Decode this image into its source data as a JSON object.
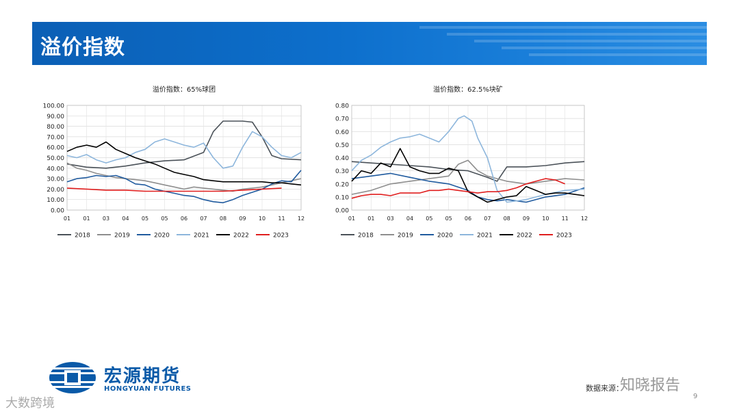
{
  "header": {
    "title": "溢价指数"
  },
  "footer": {
    "company_cn": "宏源期货",
    "company_en": "HONGYUAN FUTURES",
    "source_text": "数据来源：",
    "page_number": "9",
    "watermark_right": "知晓报告",
    "watermark_left": "大数跨境"
  },
  "colors": {
    "2018": "#4a5158",
    "2019": "#8e8e8e",
    "2020": "#1f5a9e",
    "2021": "#8db6dc",
    "2022": "#000000",
    "2023": "#e01e1e"
  },
  "chart_data": [
    {
      "type": "line",
      "title": "溢价指数：65%球团",
      "x_ticks": [
        "01",
        "01",
        "03",
        "04",
        "05",
        "05",
        "06",
        "07",
        "08",
        "09",
        "10",
        "11",
        "12"
      ],
      "y_ticks": [
        "0.00",
        "10.00",
        "20.00",
        "30.00",
        "40.00",
        "50.00",
        "60.00",
        "70.00",
        "80.00",
        "90.00",
        "100.00"
      ],
      "ylim": [
        0,
        100
      ],
      "xlim": [
        0,
        12
      ],
      "grid": true,
      "legend_position": "bottom",
      "series": [
        {
          "name": "2018",
          "x": [
            0,
            1,
            2,
            3,
            4,
            5,
            6,
            7,
            7.5,
            8,
            9,
            9.5,
            10,
            10.5,
            11,
            12
          ],
          "y": [
            44,
            41,
            40,
            42,
            45,
            47,
            48,
            55,
            75,
            85,
            85,
            84,
            70,
            52,
            49,
            48
          ]
        },
        {
          "name": "2019",
          "x": [
            0,
            0.5,
            1,
            1.5,
            2,
            2.5,
            3,
            3.5,
            4,
            4.5,
            5,
            5.5,
            6,
            6.5,
            7,
            7.5,
            8,
            8.5,
            9,
            9.5,
            10,
            10.5,
            11,
            11.5,
            12
          ],
          "y": [
            45,
            40,
            38,
            35,
            33,
            31,
            30,
            29,
            28,
            26,
            24,
            22,
            20,
            22,
            21,
            20,
            19,
            18,
            20,
            21,
            22,
            24,
            26,
            28,
            30
          ]
        },
        {
          "name": "2020",
          "x": [
            0,
            0.5,
            1,
            1.5,
            2,
            2.5,
            3,
            3.5,
            4,
            4.5,
            5,
            5.5,
            6,
            6.5,
            7,
            7.5,
            8,
            8.5,
            9,
            9.5,
            10,
            10.5,
            11,
            11.5,
            12
          ],
          "y": [
            27,
            30,
            31,
            33,
            32,
            33,
            30,
            25,
            24,
            20,
            18,
            16,
            14,
            13,
            10,
            8,
            7,
            10,
            14,
            17,
            20,
            25,
            28,
            27,
            38
          ]
        },
        {
          "name": "2021",
          "x": [
            0,
            0.5,
            1,
            1.5,
            2,
            2.5,
            3,
            3.5,
            4,
            4.5,
            5,
            5.5,
            6,
            6.5,
            7,
            7.5,
            8,
            8.5,
            9,
            9.5,
            10,
            10.5,
            11,
            11.5,
            12
          ],
          "y": [
            52,
            50,
            53,
            48,
            45,
            48,
            50,
            55,
            58,
            65,
            68,
            65,
            62,
            60,
            64,
            50,
            40,
            42,
            60,
            75,
            70,
            60,
            52,
            50,
            55
          ]
        },
        {
          "name": "2022",
          "x": [
            0,
            0.5,
            1,
            1.5,
            2,
            2.5,
            3,
            3.5,
            4,
            4.5,
            5,
            5.5,
            6,
            6.5,
            7,
            7.5,
            8,
            8.5,
            9,
            9.5,
            10,
            10.5,
            11,
            11.5,
            12
          ],
          "y": [
            56,
            60,
            62,
            60,
            65,
            58,
            54,
            50,
            47,
            44,
            40,
            36,
            34,
            32,
            29,
            28,
            27,
            27,
            27,
            27,
            27,
            26,
            26,
            25,
            24
          ]
        },
        {
          "name": "2023",
          "x": [
            0,
            1,
            2,
            3,
            4,
            5,
            6,
            7,
            8,
            9,
            10,
            11
          ],
          "y": [
            21,
            20,
            19,
            19,
            18,
            18,
            18,
            18,
            18,
            19,
            20,
            21
          ]
        }
      ]
    },
    {
      "type": "line",
      "title": "溢价指数：62.5%块矿",
      "x_ticks": [
        "01",
        "01",
        "03",
        "04",
        "05",
        "05",
        "06",
        "07",
        "08",
        "09",
        "10",
        "11",
        "12"
      ],
      "y_ticks": [
        "0.00",
        "0.10",
        "0.20",
        "0.30",
        "0.40",
        "0.50",
        "0.60",
        "0.70",
        "0.80"
      ],
      "ylim": [
        0,
        0.8
      ],
      "xlim": [
        0,
        12
      ],
      "grid": true,
      "legend_position": "bottom",
      "series": [
        {
          "name": "2018",
          "x": [
            0,
            1,
            2,
            3,
            4,
            5,
            6,
            7,
            7.5,
            8,
            9,
            10,
            11,
            12
          ],
          "y": [
            0.37,
            0.36,
            0.35,
            0.34,
            0.33,
            0.31,
            0.3,
            0.25,
            0.22,
            0.33,
            0.33,
            0.34,
            0.36,
            0.37
          ]
        },
        {
          "name": "2019",
          "x": [
            0,
            1,
            2,
            3,
            4,
            5,
            5.5,
            6,
            6.5,
            7,
            7.5,
            8,
            9,
            10,
            11,
            12
          ],
          "y": [
            0.12,
            0.15,
            0.2,
            0.22,
            0.24,
            0.26,
            0.35,
            0.38,
            0.3,
            0.26,
            0.24,
            0.22,
            0.2,
            0.22,
            0.24,
            0.23
          ]
        },
        {
          "name": "2020",
          "x": [
            0,
            1,
            2,
            3,
            4,
            5,
            6,
            6.5,
            7,
            7.5,
            8,
            9,
            10,
            11,
            12
          ],
          "y": [
            0.24,
            0.26,
            0.28,
            0.25,
            0.22,
            0.2,
            0.15,
            0.1,
            0.08,
            0.07,
            0.08,
            0.06,
            0.1,
            0.12,
            0.17
          ]
        },
        {
          "name": "2021",
          "x": [
            0,
            0.5,
            1,
            1.5,
            2,
            2.5,
            3,
            3.5,
            4,
            4.5,
            5,
            5.5,
            5.8,
            6.2,
            6.5,
            7,
            7.5,
            8,
            9,
            10,
            11,
            12
          ],
          "y": [
            0.3,
            0.38,
            0.42,
            0.48,
            0.52,
            0.55,
            0.56,
            0.58,
            0.55,
            0.52,
            0.6,
            0.7,
            0.72,
            0.68,
            0.55,
            0.4,
            0.15,
            0.06,
            0.08,
            0.12,
            0.15,
            0.16
          ]
        },
        {
          "name": "2022",
          "x": [
            0,
            0.5,
            1,
            1.5,
            2,
            2.5,
            3,
            3.5,
            4,
            4.5,
            5,
            5.5,
            6,
            6.5,
            7,
            7.5,
            8,
            8.5,
            9,
            9.5,
            10,
            10.5,
            11,
            11.5,
            12
          ],
          "y": [
            0.22,
            0.3,
            0.28,
            0.36,
            0.33,
            0.47,
            0.33,
            0.3,
            0.28,
            0.28,
            0.32,
            0.3,
            0.14,
            0.1,
            0.06,
            0.08,
            0.1,
            0.11,
            0.18,
            0.15,
            0.12,
            0.13,
            0.13,
            0.12,
            0.11
          ]
        },
        {
          "name": "2023",
          "x": [
            0,
            0.5,
            1,
            1.5,
            2,
            2.5,
            3,
            3.5,
            4,
            4.5,
            5,
            5.5,
            6,
            6.5,
            7,
            7.5,
            8,
            8.5,
            9,
            9.5,
            10,
            10.5,
            11
          ],
          "y": [
            0.09,
            0.11,
            0.12,
            0.12,
            0.11,
            0.13,
            0.13,
            0.13,
            0.15,
            0.15,
            0.16,
            0.15,
            0.14,
            0.13,
            0.14,
            0.14,
            0.15,
            0.17,
            0.2,
            0.22,
            0.24,
            0.23,
            0.2
          ]
        }
      ]
    }
  ]
}
